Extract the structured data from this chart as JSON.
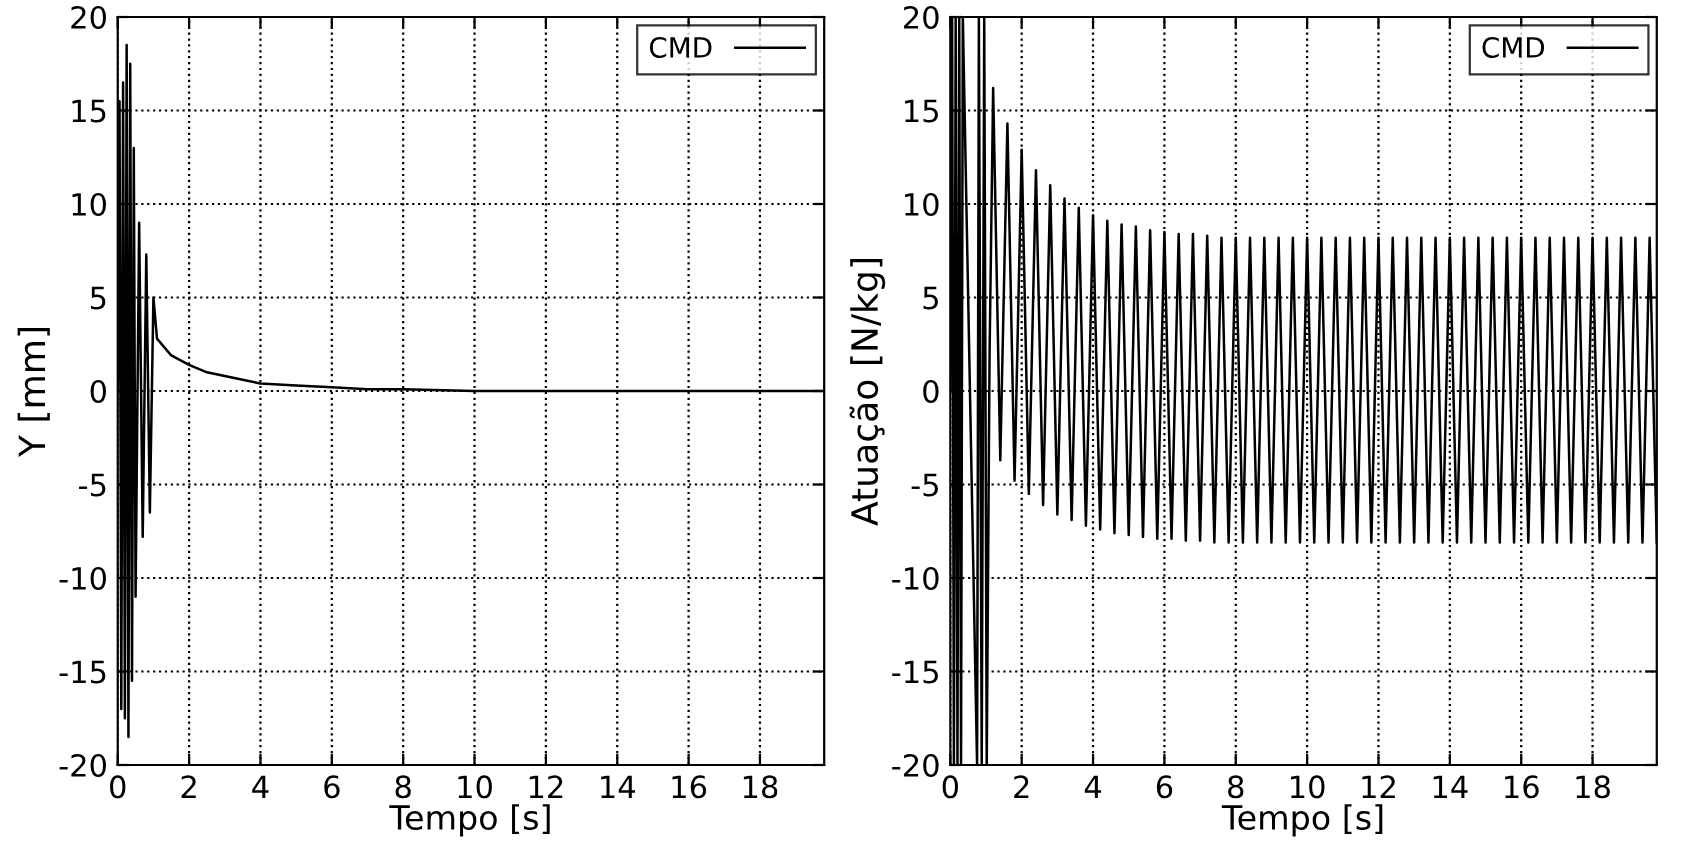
{
  "chart_data": [
    {
      "type": "line",
      "xlabel": "Tempo [s]",
      "ylabel": "Y [mm]",
      "xlim": [
        0,
        19.8
      ],
      "ylim": [
        -20,
        20
      ],
      "xticks": [
        0,
        2,
        4,
        6,
        8,
        10,
        12,
        14,
        16,
        18
      ],
      "yticks": [
        -20,
        -15,
        -10,
        -5,
        0,
        5,
        10,
        15,
        20
      ],
      "grid": true,
      "legend": "top right",
      "series": [
        {
          "name": "CMD",
          "color": "#000000",
          "x": [
            0,
            0.05,
            0.1,
            0.15,
            0.2,
            0.25,
            0.3,
            0.35,
            0.4,
            0.45,
            0.5,
            0.6,
            0.7,
            0.8,
            0.9,
            1.0,
            1.1,
            1.5,
            2,
            2.5,
            3,
            3.5,
            4,
            5,
            6,
            7,
            8,
            10,
            14,
            19.8
          ],
          "values": [
            0,
            15.5,
            -17,
            16.5,
            -17.5,
            18.5,
            -18.5,
            17.5,
            -15.5,
            13,
            -11,
            9,
            -7.8,
            7.3,
            -6.5,
            5,
            2.8,
            1.9,
            1.4,
            1.0,
            0.8,
            0.6,
            0.4,
            0.3,
            0.2,
            0.1,
            0.1,
            0,
            0,
            0
          ]
        }
      ]
    },
    {
      "type": "line",
      "xlabel": "Tempo [s]",
      "ylabel": "Atuação [N/kg]",
      "xlim": [
        0,
        19.8
      ],
      "ylim": [
        -20,
        20
      ],
      "xticks": [
        0,
        2,
        4,
        6,
        8,
        10,
        12,
        14,
        16,
        18
      ],
      "yticks": [
        -20,
        -15,
        -10,
        -5,
        0,
        5,
        10,
        15,
        20
      ],
      "grid": true,
      "legend": "top right",
      "series": [
        {
          "name": "CMD",
          "color": "#000000",
          "x": [
            0,
            0.05,
            0.1,
            0.15,
            0.2,
            0.25,
            0.3,
            0.35,
            0.75,
            0.8,
            0.88,
            0.95,
            1.02,
            1.1,
            1.2,
            1.4,
            1.6,
            1.8,
            2.0,
            2.2,
            2.4,
            2.6,
            2.8,
            3.0,
            3.2,
            3.4,
            3.6,
            3.8,
            4.0,
            4.2,
            4.4,
            4.6,
            4.8,
            5.0,
            5.2,
            5.4,
            5.6,
            5.8,
            6.0,
            6.2,
            6.4,
            6.6,
            6.8,
            7.0,
            7.2,
            7.4,
            7.6,
            7.8,
            8.0,
            8.2,
            8.4,
            8.6,
            8.8,
            9.0,
            9.2,
            9.4,
            9.6,
            9.8,
            10.0,
            10.2,
            10.4,
            10.6,
            10.8,
            11.0,
            11.2,
            11.4,
            11.6,
            11.8,
            12.0,
            12.2,
            12.4,
            12.6,
            12.8,
            13.0,
            13.2,
            13.4,
            13.6,
            13.8,
            14.0,
            14.2,
            14.4,
            14.6,
            14.8,
            15.0,
            15.2,
            15.4,
            15.6,
            15.8,
            16.0,
            16.2,
            16.4,
            16.6,
            16.8,
            17.0,
            17.2,
            17.4,
            17.6,
            17.8,
            18.0,
            18.2,
            18.4,
            18.6,
            18.8,
            19.0,
            19.2,
            19.4,
            19.6,
            19.8
          ],
          "values": [
            0,
            20,
            -20,
            20,
            -20,
            20,
            -20,
            20,
            -20,
            20,
            -20,
            20,
            -20,
            2,
            16.2,
            -3.7,
            14.3,
            -4.8,
            12.9,
            -5.5,
            11.8,
            -6.1,
            11.0,
            -6.6,
            10.3,
            -6.9,
            9.8,
            -7.2,
            9.4,
            -7.4,
            9.1,
            -7.6,
            8.9,
            -7.7,
            8.8,
            -7.8,
            8.6,
            -7.9,
            8.5,
            -7.9,
            8.4,
            -8.0,
            8.4,
            -8.0,
            8.3,
            -8.1,
            8.2,
            -8.1,
            8.2,
            -8.1,
            8.2,
            -8.1,
            8.2,
            -8.1,
            8.2,
            -8.1,
            8.2,
            -8.1,
            8.2,
            -8.1,
            8.2,
            -8.1,
            8.2,
            -8.1,
            8.2,
            -8.1,
            8.2,
            -8.1,
            8.2,
            -8.1,
            8.2,
            -8.1,
            8.2,
            -8.1,
            8.2,
            -8.1,
            8.2,
            -8.1,
            8.2,
            -8.1,
            8.2,
            -8.1,
            8.2,
            -8.1,
            8.2,
            -8.1,
            8.2,
            -8.1,
            8.2,
            -8.1,
            8.2,
            -8.1,
            8.2,
            -8.1,
            8.2,
            -8.1,
            8.2,
            -8.1,
            8.2,
            -8.1,
            8.2,
            -8.1,
            8.2,
            -8.1,
            8.2,
            -8.1,
            8.2,
            -8.1
          ]
        }
      ]
    }
  ]
}
